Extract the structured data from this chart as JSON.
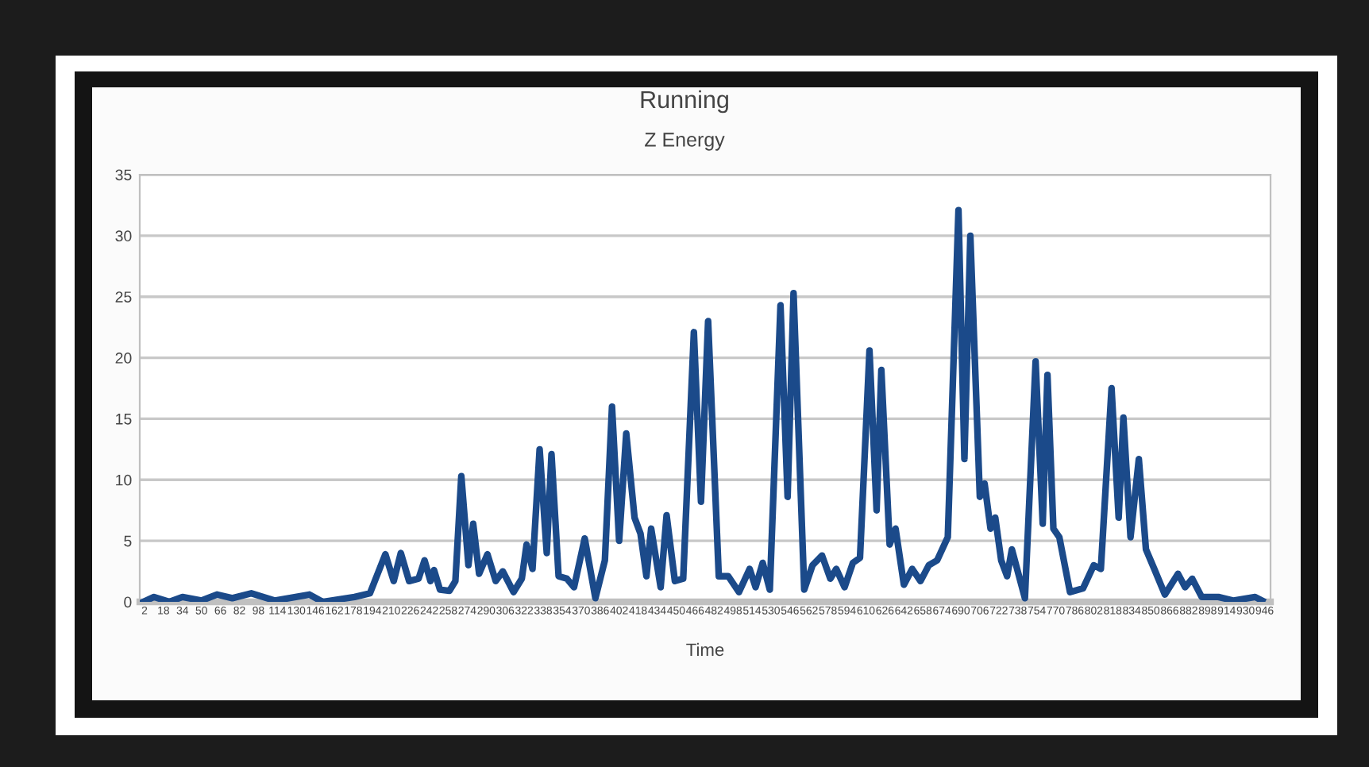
{
  "chart_data": {
    "type": "line",
    "title": "Running",
    "subtitle": "Z Energy",
    "xlabel": "Time",
    "x": [
      1,
      10,
      23,
      34,
      50,
      63,
      76,
      92,
      112,
      141,
      152,
      179,
      192,
      205,
      212,
      218,
      225,
      233,
      238,
      243,
      246,
      251,
      259,
      264,
      269,
      275,
      279,
      284,
      291,
      298,
      304,
      313,
      320,
      324,
      329,
      335,
      341,
      345,
      351,
      358,
      364,
      373,
      382,
      390,
      396,
      402,
      408,
      415,
      420,
      425,
      429,
      437,
      442,
      449,
      456,
      465,
      471,
      477,
      486,
      494,
      503,
      512,
      517,
      523,
      529,
      538,
      544,
      549,
      558,
      565,
      573,
      580,
      585,
      592,
      599,
      605,
      613,
      619,
      623,
      630,
      635,
      642,
      649,
      656,
      663,
      670,
      679,
      688,
      693,
      698,
      706,
      710,
      715,
      719,
      724,
      729,
      733,
      744,
      753,
      759,
      763,
      768,
      773,
      782,
      793,
      802,
      808,
      817,
      823,
      827,
      833,
      840,
      846,
      853,
      862,
      873,
      879,
      885,
      893,
      907,
      920,
      938,
      944
    ],
    "series": [
      {
        "color": "#1b4a8a",
        "values": [
          0,
          0.4,
          0,
          0.4,
          0.1,
          0.6,
          0.3,
          0.7,
          0.1,
          0.6,
          0,
          0.4,
          0.7,
          3.9,
          1.7,
          4.0,
          1.7,
          1.9,
          3.4,
          1.7,
          2.6,
          1.0,
          0.9,
          1.7,
          10.3,
          3.0,
          6.4,
          2.3,
          3.9,
          1.7,
          2.5,
          0.8,
          1.9,
          4.7,
          2.7,
          12.5,
          4.0,
          12.1,
          2.1,
          1.9,
          1.2,
          5.2,
          0.3,
          3.4,
          16.0,
          5.0,
          13.8,
          6.9,
          5.6,
          2.1,
          6.0,
          1.2,
          7.1,
          1.7,
          1.9,
          22.1,
          8.2,
          23.0,
          2.1,
          2.1,
          0.8,
          2.7,
          1.2,
          3.2,
          1.0,
          24.3,
          8.6,
          25.3,
          1.0,
          3.0,
          3.8,
          1.9,
          2.7,
          1.2,
          3.2,
          3.6,
          20.6,
          7.5,
          19.0,
          4.7,
          6.0,
          1.4,
          2.7,
          1.7,
          3.0,
          3.4,
          5.3,
          32.1,
          11.7,
          30.0,
          8.6,
          9.7,
          6.0,
          6.9,
          3.4,
          2.1,
          4.3,
          0.3,
          19.7,
          6.4,
          18.6,
          6.0,
          5.3,
          0.8,
          1.1,
          3.0,
          2.7,
          17.5,
          6.9,
          15.1,
          5.3,
          11.7,
          4.3,
          2.7,
          0.6,
          2.3,
          1.2,
          1.9,
          0.4,
          0.4,
          0.1,
          0.4,
          0.1
        ]
      }
    ],
    "xlim": [
      -2,
      951
    ],
    "xticks": [
      2,
      18,
      34,
      50,
      66,
      82,
      98,
      114,
      130,
      146,
      162,
      178,
      194,
      210,
      226,
      242,
      258,
      274,
      290,
      306,
      322,
      338,
      354,
      370,
      386,
      402,
      418,
      434,
      450,
      466,
      482,
      498,
      514,
      530,
      546,
      562,
      578,
      594,
      610,
      626,
      642,
      658,
      674,
      690,
      706,
      722,
      738,
      754,
      770,
      786,
      802,
      818,
      834,
      850,
      866,
      882,
      898,
      914,
      930,
      946
    ],
    "ylim": [
      0,
      35
    ],
    "yticks": [
      0,
      5,
      10,
      15,
      20,
      25,
      30,
      35
    ],
    "grid": "y",
    "legend": false
  }
}
